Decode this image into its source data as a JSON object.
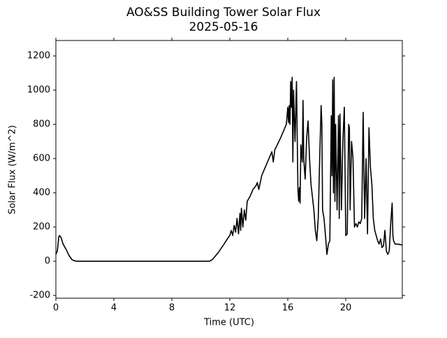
{
  "chart_data": {
    "type": "line",
    "title": "AO&SS Building Tower Solar Flux",
    "subtitle": "2025-05-16",
    "x_label": "Time (UTC)",
    "y_label": "Solar Flux (W/m^2)",
    "xlim": [
      0,
      23.9
    ],
    "ylim": [
      -216,
      1290
    ],
    "xticks": [
      0,
      4,
      8,
      12,
      16,
      20
    ],
    "yticks": [
      -200,
      0,
      200,
      400,
      600,
      800,
      1000,
      1200
    ],
    "grid": false,
    "series": [
      {
        "color": "#000000",
        "x": [
          0,
          0.1,
          0.2,
          0.25,
          0.35,
          0.5,
          0.7,
          0.9,
          1.1,
          1.3,
          1.5,
          10.6,
          10.8,
          11.2,
          11.6,
          11.9,
          12.0,
          12.1,
          12.2,
          12.3,
          12.4,
          12.5,
          12.6,
          12.7,
          12.75,
          12.8,
          12.9,
          13.0,
          13.1,
          13.2,
          13.4,
          13.6,
          13.8,
          13.9,
          14.0,
          14.2,
          14.5,
          14.8,
          14.9,
          15.0,
          15.1,
          15.5,
          15.9,
          16.0,
          16.05,
          16.1,
          16.15,
          16.2,
          16.25,
          16.3,
          16.35,
          16.4,
          16.5,
          16.6,
          16.7,
          16.75,
          16.8,
          16.85,
          16.9,
          17.0,
          17.05,
          17.1,
          17.2,
          17.3,
          17.4,
          17.5,
          17.6,
          17.8,
          17.9,
          18.0,
          18.1,
          18.2,
          18.3,
          18.35,
          18.4,
          18.5,
          18.6,
          18.7,
          18.8,
          18.9,
          19.0,
          19.05,
          19.1,
          19.15,
          19.2,
          19.25,
          19.3,
          19.4,
          19.5,
          19.55,
          19.6,
          19.7,
          19.8,
          19.9,
          20.0,
          20.1,
          20.2,
          20.25,
          20.3,
          20.4,
          20.5,
          20.6,
          20.7,
          20.8,
          20.9,
          21.0,
          21.1,
          21.2,
          21.3,
          21.4,
          21.5,
          21.6,
          21.7,
          21.8,
          21.9,
          22.0,
          22.1,
          22.2,
          22.3,
          22.4,
          22.5,
          22.6,
          22.7,
          22.8,
          22.9,
          23.0,
          23.1,
          23.2,
          23.25,
          23.3,
          23.4,
          23.6,
          23.9
        ],
        "values": [
          40,
          60,
          140,
          150,
          140,
          100,
          70,
          35,
          10,
          2,
          0,
          0,
          10,
          50,
          100,
          140,
          150,
          180,
          150,
          210,
          170,
          250,
          160,
          280,
          180,
          310,
          200,
          300,
          240,
          350,
          380,
          420,
          440,
          460,
          420,
          500,
          560,
          620,
          640,
          580,
          650,
          720,
          800,
          900,
          810,
          910,
          800,
          1050,
          900,
          1075,
          580,
          1000,
          700,
          1050,
          420,
          350,
          430,
          340,
          680,
          580,
          940,
          600,
          480,
          720,
          820,
          600,
          450,
          300,
          180,
          120,
          250,
          600,
          910,
          800,
          300,
          250,
          150,
          40,
          100,
          120,
          850,
          500,
          1060,
          400,
          1075,
          350,
          800,
          300,
          850,
          250,
          860,
          300,
          700,
          900,
          150,
          160,
          800,
          780,
          300,
          700,
          600,
          200,
          220,
          200,
          230,
          220,
          250,
          870,
          250,
          600,
          160,
          780,
          550,
          450,
          250,
          180,
          150,
          120,
          100,
          130,
          80,
          90,
          180,
          60,
          40,
          60,
          220,
          340,
          150,
          120,
          100,
          100,
          95
        ]
      }
    ]
  }
}
